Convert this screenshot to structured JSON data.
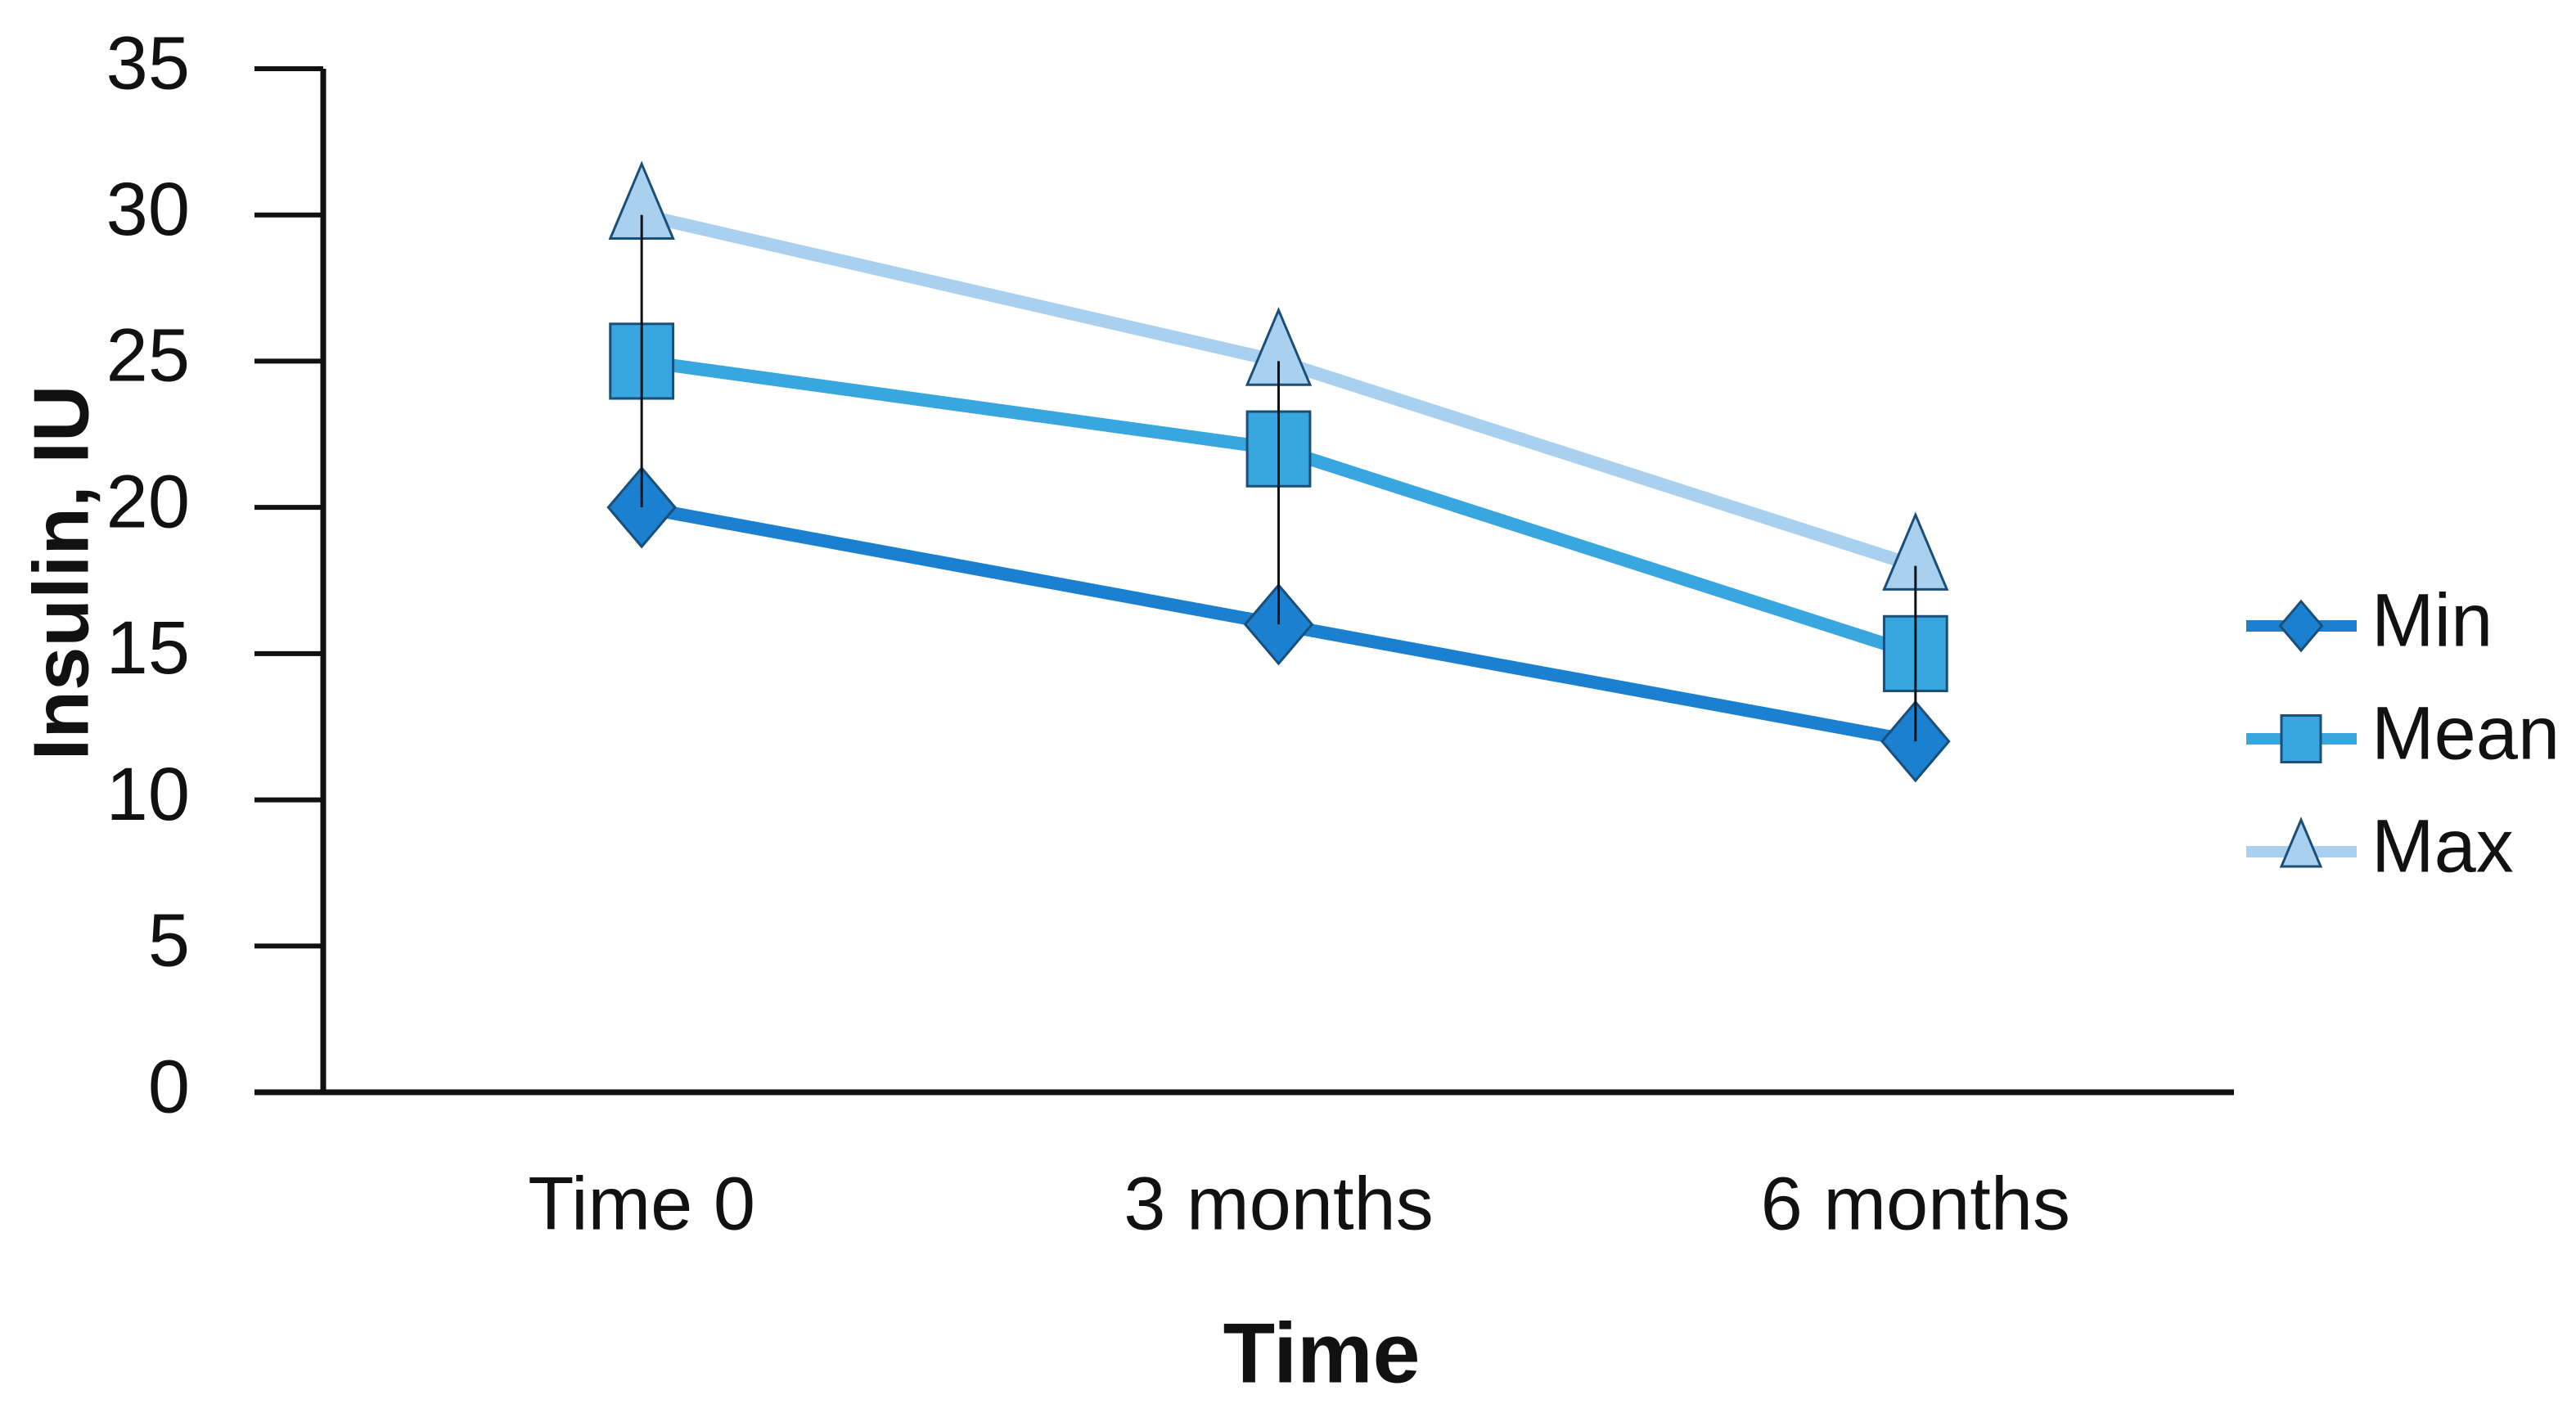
{
  "chart_data": {
    "type": "line",
    "x_label": "Time",
    "y_label": "Insulin, IU",
    "categories": [
      "Time 0",
      "3 months",
      "6 months"
    ],
    "series": [
      {
        "name": "Min",
        "color": "#1b80cf",
        "marker": "diamond",
        "values": [
          20,
          16,
          12
        ]
      },
      {
        "name": "Mean",
        "color": "#38a6df",
        "marker": "square",
        "values": [
          25,
          22,
          15
        ]
      },
      {
        "name": "Max",
        "color": "#a9d1ef",
        "marker": "triangle",
        "values": [
          30,
          25,
          18
        ]
      }
    ],
    "ylim": [
      0,
      35
    ],
    "yticks": [
      0,
      5,
      10,
      15,
      20,
      25,
      30,
      35
    ],
    "high_low_lines": true,
    "legend": "right",
    "grid": false
  }
}
